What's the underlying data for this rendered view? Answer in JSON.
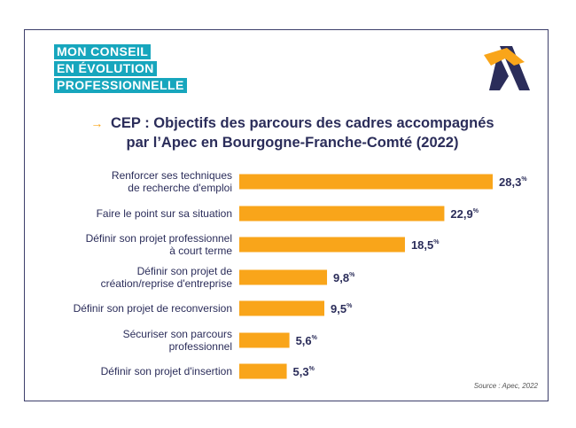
{
  "badge": {
    "line1": "MON CONSEIL",
    "line2": "EN ÉVOLUTION",
    "line3": "PROFESSIONNELLE"
  },
  "logo_icon": "apec-logo-icon",
  "colors": {
    "bar": "#F9A51A",
    "title": "#2B2D5A",
    "badge": "#17A6BD",
    "frame": "#3D3F6B",
    "label": "#2B2D5A"
  },
  "source": "Source : Apec, 2022",
  "chart_data": {
    "type": "bar",
    "orientation": "horizontal",
    "title_prefix": "→",
    "title_line1": "CEP : Objectifs des parcours des cadres accompagnés",
    "title_line2": "par l’Apec en Bourgogne-Franche-Comté (2022)",
    "unit": "%",
    "categories": [
      [
        "Renforcer ses techniques",
        "de recherche d'emploi"
      ],
      [
        "Faire le point sur sa situation"
      ],
      [
        "Définir son projet professionnel",
        "à court terme"
      ],
      [
        "Définir son projet de",
        "création/reprise d'entreprise"
      ],
      [
        "Définir son projet de reconversion"
      ],
      [
        "Sécuriser son parcours",
        "professionnel"
      ],
      [
        "Définir son projet d'insertion"
      ]
    ],
    "values": [
      28.3,
      22.9,
      18.5,
      9.8,
      9.5,
      5.6,
      5.3
    ],
    "value_labels": [
      "28,3",
      "22,9",
      "18,5",
      "9,8",
      "9,5",
      "5,6",
      "5,3"
    ],
    "xlim": [
      0,
      28.3
    ]
  }
}
